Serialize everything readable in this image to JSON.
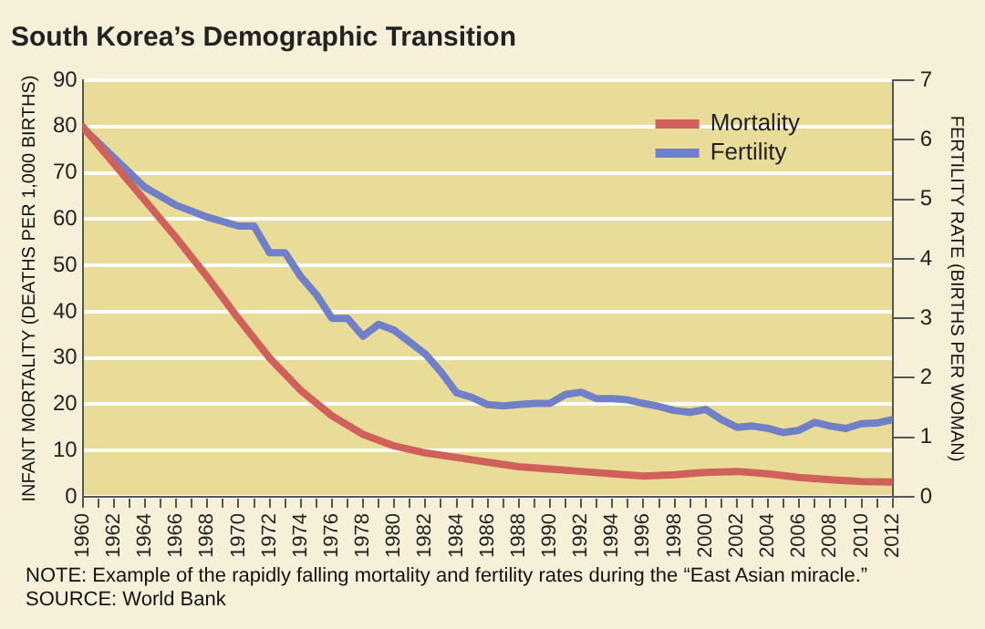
{
  "chart_data": {
    "type": "line",
    "title": "South Korea’s Demographic Transition",
    "ylabel": "INFANT MORTALITY (DEATHS PER 1,000 BIRTHS)",
    "y2label": "FERTILITY RATE (BIRTHS PER WOMAN)",
    "x": [
      1960,
      1962,
      1964,
      1966,
      1968,
      1970,
      1972,
      1974,
      1976,
      1978,
      1980,
      1982,
      1984,
      1986,
      1988,
      1990,
      1992,
      1994,
      1996,
      1998,
      2000,
      2002,
      2004,
      2006,
      2008,
      2010,
      2012
    ],
    "series": [
      {
        "name": "Mortality",
        "color": "#d0605a",
        "values": [
          80,
          72,
          64,
          56,
          47.5,
          38.5,
          30,
          23,
          17.5,
          13.5,
          11,
          9.5,
          8.5,
          7.5,
          6.5,
          6,
          5.5,
          5,
          4.5,
          4.8,
          5.3,
          5.5,
          5,
          4.2,
          3.7,
          3.3,
          3.2
        ]
      },
      {
        "name": "Fertility",
        "color": "#7080c8",
        "axis": "y2",
        "x": [
          1960,
          1962,
          1964,
          1966,
          1968,
          1970,
          1971,
          1972,
          1973,
          1974,
          1975,
          1976,
          1977,
          1978,
          1979,
          1980,
          1981,
          1982,
          1983,
          1984,
          1985,
          1986,
          1987,
          1988,
          1989,
          1990,
          1991,
          1992,
          1993,
          1994,
          1995,
          1996,
          1997,
          1998,
          1999,
          2000,
          2001,
          2002,
          2003,
          2004,
          2005,
          2006,
          2007,
          2008,
          2009,
          2010,
          2011,
          2012
        ],
        "values": [
          6.2,
          5.7,
          5.2,
          4.9,
          4.7,
          4.55,
          4.55,
          4.1,
          4.1,
          3.7,
          3.4,
          3,
          3,
          2.7,
          2.9,
          2.8,
          2.6,
          2.4,
          2.1,
          1.75,
          1.67,
          1.55,
          1.53,
          1.55,
          1.57,
          1.57,
          1.72,
          1.76,
          1.65,
          1.65,
          1.63,
          1.57,
          1.52,
          1.45,
          1.42,
          1.47,
          1.3,
          1.17,
          1.19,
          1.15,
          1.08,
          1.12,
          1.25,
          1.19,
          1.15,
          1.23,
          1.24,
          1.3
        ]
      }
    ],
    "xlim": [
      1960,
      2012
    ],
    "xticks": [
      1960,
      {
        "value": 1961,
        "label": null
      },
      1962,
      {
        "value": 1963,
        "label": null
      },
      1964,
      {
        "value": 1965,
        "label": null
      },
      1966,
      {
        "value": 1967,
        "label": null
      },
      1968,
      {
        "value": 1969,
        "label": null
      },
      1970,
      {
        "value": 1971,
        "label": null
      },
      1972,
      {
        "value": 1973,
        "label": null
      },
      1974,
      {
        "value": 1975,
        "label": null
      },
      1976,
      {
        "value": 1977,
        "label": null
      },
      1978,
      {
        "value": 1979,
        "label": null
      },
      1980,
      {
        "value": 1981,
        "label": null
      },
      1982,
      {
        "value": 1983,
        "label": null
      },
      1984,
      {
        "value": 1985,
        "label": null
      },
      1986,
      {
        "value": 1987,
        "label": null
      },
      1988,
      {
        "value": 1989,
        "label": null
      },
      1990,
      {
        "value": 1991,
        "label": null
      },
      1992,
      {
        "value": 1993,
        "label": null
      },
      1994,
      {
        "value": 1995,
        "label": null
      },
      1996,
      {
        "value": 1997,
        "label": null
      },
      1998,
      {
        "value": 1999,
        "label": null
      },
      2000,
      {
        "value": 2001,
        "label": null
      },
      2002,
      {
        "value": 2003,
        "label": null
      },
      2004,
      {
        "value": 2005,
        "label": null
      },
      2006,
      {
        "value": 2007,
        "label": null
      },
      2008,
      {
        "value": 2009,
        "label": null
      },
      2010,
      {
        "value": 2011,
        "label": null
      },
      2012
    ],
    "ylim": [
      0,
      90
    ],
    "yticks": [
      0,
      10,
      20,
      30,
      40,
      50,
      60,
      70,
      80,
      90
    ],
    "y2lim": [
      0,
      7
    ],
    "y2ticks": [
      0,
      1,
      2,
      3,
      4,
      5,
      6,
      7
    ],
    "grid": "y",
    "legend": "top right",
    "marker": "none",
    "line_style": "solid",
    "annotations": [
      "NOTE: Example of the rapidly falling mortality and fertility rates during the “East Asian miracle.”",
      "SOURCE: World Bank"
    ]
  }
}
